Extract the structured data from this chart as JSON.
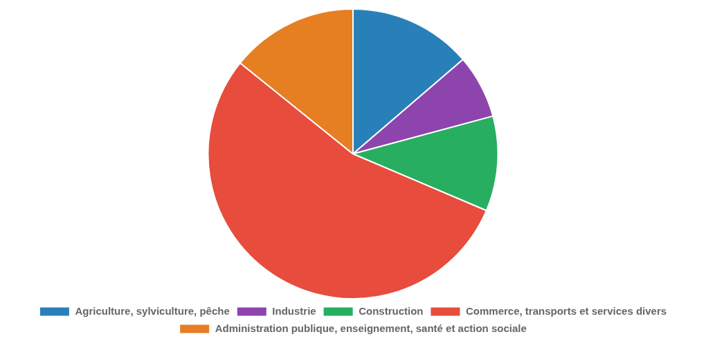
{
  "chart_data": {
    "type": "pie",
    "categories": [
      "Agriculture, sylviculture, pêche",
      "Industrie",
      "Construction",
      "Commerce, transports et services divers",
      "Administration publique, enseignement, santé et action sociale"
    ],
    "values": [
      13.7,
      7.1,
      10.6,
      54.4,
      14.2
    ],
    "colors": [
      "#2980b9",
      "#8e44ad",
      "#27ae60",
      "#e74c3c",
      "#e67e22"
    ],
    "legend": "bottom"
  }
}
